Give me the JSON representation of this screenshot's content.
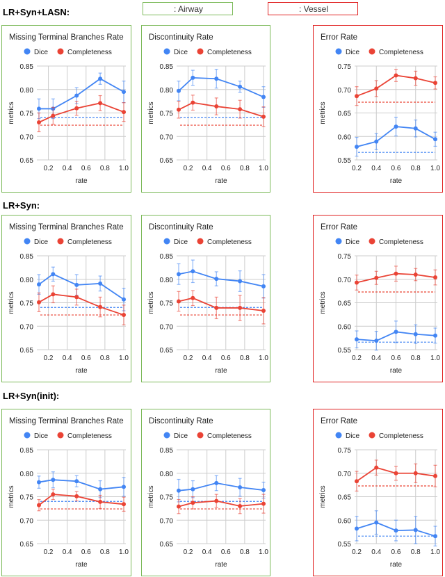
{
  "key": {
    "airway_label": ": Airway",
    "vessel_label": ": Vessel",
    "airway_color": "#7cba5a",
    "vessel_color": "#e02020"
  },
  "colors": {
    "dice": "#4285f4",
    "completeness": "#ea4335"
  },
  "legend": {
    "dice": "Dice",
    "completeness": "Completeness"
  },
  "chart_data": [
    {
      "row": "LR+Syn+LASN:",
      "group": "airway",
      "type": "line",
      "title": "Missing Terminal Branches Rate",
      "xlabel": "rate",
      "ylabel": "metrics",
      "ylim": [
        0.65,
        0.85
      ],
      "yticks": [
        "0.65",
        "0.70",
        "0.75",
        "0.80",
        "0.85"
      ],
      "xlim": [
        0.1,
        1.0
      ],
      "xticks": [
        "0.2",
        "0.4",
        "0.6",
        "0.8",
        "1.0"
      ],
      "grid": true,
      "legend": "top",
      "x": [
        0.1,
        0.25,
        0.5,
        0.75,
        1.0
      ],
      "series": [
        {
          "name": "Dice",
          "values": [
            0.759,
            0.759,
            0.787,
            0.823,
            0.795
          ],
          "errors": [
            0.021,
            0.021,
            0.017,
            0.012,
            0.023
          ],
          "baseline": 0.74
        },
        {
          "name": "Completeness",
          "values": [
            0.73,
            0.744,
            0.76,
            0.771,
            0.752
          ],
          "errors": [
            0.02,
            0.018,
            0.015,
            0.016,
            0.02
          ],
          "baseline": 0.724
        }
      ]
    },
    {
      "row": "LR+Syn+LASN:",
      "group": "airway",
      "type": "line",
      "title": "Discontinuity Rate",
      "xlabel": "rate",
      "ylabel": "metrics",
      "ylim": [
        0.65,
        0.85
      ],
      "yticks": [
        "0.65",
        "0.70",
        "0.75",
        "0.80",
        "0.85"
      ],
      "xlim": [
        0.1,
        1.0
      ],
      "xticks": [
        "0.2",
        "0.4",
        "0.6",
        "0.8",
        "1.0"
      ],
      "grid": true,
      "legend": "top",
      "x": [
        0.1,
        0.25,
        0.5,
        0.75,
        1.0
      ],
      "series": [
        {
          "name": "Dice",
          "values": [
            0.797,
            0.825,
            0.823,
            0.806,
            0.784
          ],
          "errors": [
            0.021,
            0.016,
            0.02,
            0.012,
            0.022
          ],
          "baseline": 0.74
        },
        {
          "name": "Completeness",
          "values": [
            0.757,
            0.772,
            0.764,
            0.758,
            0.742
          ],
          "errors": [
            0.018,
            0.016,
            0.018,
            0.019,
            0.021
          ],
          "baseline": 0.724
        }
      ]
    },
    {
      "row": "LR+Syn+LASN:",
      "group": "vessel",
      "type": "line",
      "title": "Error Rate",
      "xlabel": "rate",
      "ylabel": "metrics",
      "ylim": [
        0.55,
        0.75
      ],
      "yticks": [
        "0.55",
        "0.60",
        "0.65",
        "0.70",
        "0.75"
      ],
      "xlim": [
        0.2,
        1.0
      ],
      "xticks": [
        "0.2",
        "0.4",
        "0.6",
        "0.8",
        "1.0"
      ],
      "grid": true,
      "legend": "top",
      "x": [
        0.2,
        0.4,
        0.6,
        0.8,
        1.0
      ],
      "series": [
        {
          "name": "Dice",
          "values": [
            0.578,
            0.589,
            0.621,
            0.617,
            0.594
          ],
          "errors": [
            0.02,
            0.017,
            0.02,
            0.018,
            0.015
          ],
          "baseline": 0.566
        },
        {
          "name": "Completeness",
          "values": [
            0.686,
            0.702,
            0.73,
            0.724,
            0.714
          ],
          "errors": [
            0.02,
            0.017,
            0.013,
            0.015,
            0.013
          ],
          "baseline": 0.673
        }
      ]
    },
    {
      "row": "LR+Syn:",
      "group": "airway",
      "type": "line",
      "title": "Missing Terminal Branches Rate",
      "xlabel": "rate",
      "ylabel": "metrics",
      "ylim": [
        0.65,
        0.85
      ],
      "yticks": [
        "0.65",
        "0.70",
        "0.75",
        "0.80",
        "0.85"
      ],
      "xlim": [
        0.1,
        1.0
      ],
      "xticks": [
        "0.2",
        "0.4",
        "0.6",
        "0.8",
        "1.0"
      ],
      "grid": true,
      "legend": "top",
      "x": [
        0.1,
        0.25,
        0.5,
        0.75,
        1.0
      ],
      "series": [
        {
          "name": "Dice",
          "values": [
            0.789,
            0.811,
            0.788,
            0.791,
            0.757
          ],
          "errors": [
            0.021,
            0.015,
            0.022,
            0.016,
            0.024
          ],
          "baseline": 0.74
        },
        {
          "name": "Completeness",
          "values": [
            0.751,
            0.768,
            0.762,
            0.741,
            0.724
          ],
          "errors": [
            0.02,
            0.018,
            0.017,
            0.021,
            0.021
          ],
          "baseline": 0.724
        }
      ]
    },
    {
      "row": "LR+Syn:",
      "group": "airway",
      "type": "line",
      "title": "Discontinuity Rate",
      "xlabel": "rate",
      "ylabel": "metrics",
      "ylim": [
        0.65,
        0.85
      ],
      "yticks": [
        "0.65",
        "0.70",
        "0.75",
        "0.80",
        "0.85"
      ],
      "xlim": [
        0.1,
        1.0
      ],
      "xticks": [
        "0.2",
        "0.4",
        "0.6",
        "0.8",
        "1.0"
      ],
      "grid": true,
      "legend": "top",
      "x": [
        0.1,
        0.25,
        0.5,
        0.75,
        1.0
      ],
      "series": [
        {
          "name": "Dice",
          "values": [
            0.811,
            0.817,
            0.801,
            0.796,
            0.785
          ],
          "errors": [
            0.022,
            0.024,
            0.015,
            0.022,
            0.025
          ],
          "baseline": 0.74
        },
        {
          "name": "Completeness",
          "values": [
            0.753,
            0.76,
            0.739,
            0.739,
            0.733
          ],
          "errors": [
            0.021,
            0.016,
            0.023,
            0.027,
            0.028
          ],
          "baseline": 0.724
        }
      ]
    },
    {
      "row": "LR+Syn:",
      "group": "vessel",
      "type": "line",
      "title": "Error Rate",
      "xlabel": "rate",
      "ylabel": "metrics",
      "ylim": [
        0.55,
        0.75
      ],
      "yticks": [
        "0.55",
        "0.60",
        "0.65",
        "0.70",
        "0.75"
      ],
      "xlim": [
        0.2,
        1.0
      ],
      "xticks": [
        "0.2",
        "0.4",
        "0.6",
        "0.8",
        "1.0"
      ],
      "grid": true,
      "legend": "top",
      "x": [
        0.2,
        0.4,
        0.6,
        0.8,
        1.0
      ],
      "series": [
        {
          "name": "Dice",
          "values": [
            0.572,
            0.569,
            0.588,
            0.583,
            0.58
          ],
          "errors": [
            0.018,
            0.02,
            0.023,
            0.02,
            0.016
          ],
          "baseline": 0.566
        },
        {
          "name": "Completeness",
          "values": [
            0.693,
            0.703,
            0.712,
            0.71,
            0.704
          ],
          "errors": [
            0.016,
            0.014,
            0.016,
            0.013,
            0.016
          ],
          "baseline": 0.673
        }
      ]
    },
    {
      "row": "LR+Syn(init):",
      "group": "airway",
      "type": "line",
      "title": "Missing Terminal Branches Rate",
      "xlabel": "rate",
      "ylabel": "metrics",
      "ylim": [
        0.65,
        0.85
      ],
      "yticks": [
        "0.65",
        "0.70",
        "0.75",
        "0.80",
        "0.85"
      ],
      "xlim": [
        0.1,
        1.0
      ],
      "xticks": [
        "0.2",
        "0.4",
        "0.6",
        "0.8",
        "1.0"
      ],
      "grid": true,
      "legend": "top",
      "x": [
        0.1,
        0.25,
        0.5,
        0.75,
        1.0
      ],
      "series": [
        {
          "name": "Dice",
          "values": [
            0.781,
            0.786,
            0.783,
            0.766,
            0.771
          ],
          "errors": [
            0.013,
            0.017,
            0.012,
            0.018,
            0.02
          ],
          "baseline": 0.74
        },
        {
          "name": "Completeness",
          "values": [
            0.732,
            0.755,
            0.751,
            0.739,
            0.734
          ],
          "errors": [
            0.012,
            0.011,
            0.01,
            0.014,
            0.015
          ],
          "baseline": 0.724
        }
      ]
    },
    {
      "row": "LR+Syn(init):",
      "group": "airway",
      "type": "line",
      "title": "Discontinuity Rate",
      "xlabel": "rate",
      "ylabel": "metrics",
      "ylim": [
        0.65,
        0.85
      ],
      "yticks": [
        "0.65",
        "0.70",
        "0.75",
        "0.80",
        "0.85"
      ],
      "xlim": [
        0.1,
        1.0
      ],
      "xticks": [
        "0.2",
        "0.4",
        "0.6",
        "0.8",
        "1.0"
      ],
      "grid": true,
      "legend": "top",
      "x": [
        0.1,
        0.25,
        0.5,
        0.75,
        1.0
      ],
      "series": [
        {
          "name": "Dice",
          "values": [
            0.763,
            0.766,
            0.779,
            0.77,
            0.764
          ],
          "errors": [
            0.024,
            0.018,
            0.016,
            0.019,
            0.017
          ],
          "baseline": 0.74
        },
        {
          "name": "Completeness",
          "values": [
            0.729,
            0.737,
            0.741,
            0.73,
            0.735
          ],
          "errors": [
            0.015,
            0.013,
            0.014,
            0.016,
            0.02
          ],
          "baseline": 0.724
        }
      ]
    },
    {
      "row": "LR+Syn(init):",
      "group": "vessel",
      "type": "line",
      "title": "Error Rate",
      "xlabel": "rate",
      "ylabel": "metrics",
      "ylim": [
        0.55,
        0.75
      ],
      "yticks": [
        "0.55",
        "0.60",
        "0.65",
        "0.70",
        "0.75"
      ],
      "xlim": [
        0.2,
        1.0
      ],
      "xticks": [
        "0.2",
        "0.4",
        "0.6",
        "0.8",
        "1.0"
      ],
      "grid": true,
      "legend": "top",
      "x": [
        0.2,
        0.4,
        0.6,
        0.8,
        1.0
      ],
      "series": [
        {
          "name": "Dice",
          "values": [
            0.582,
            0.595,
            0.578,
            0.579,
            0.566
          ],
          "errors": [
            0.026,
            0.025,
            0.022,
            0.029,
            0.021
          ],
          "baseline": 0.566
        },
        {
          "name": "Completeness",
          "values": [
            0.683,
            0.712,
            0.7,
            0.7,
            0.694
          ],
          "errors": [
            0.021,
            0.016,
            0.015,
            0.02,
            0.023
          ],
          "baseline": 0.673
        }
      ]
    }
  ],
  "rows": [
    "LR+Syn+LASN:",
    "LR+Syn:",
    "LR+Syn(init):"
  ]
}
